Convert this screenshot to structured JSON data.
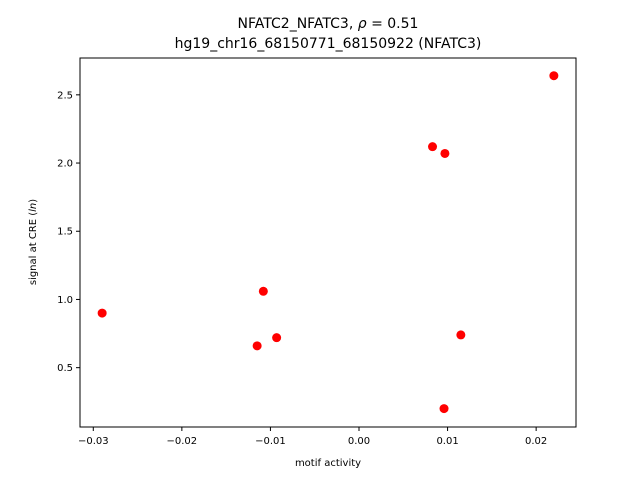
{
  "chart_data": {
    "type": "scatter",
    "title": "NFATC2_NFATC3, ρ = 0.51",
    "title_prefix": "NFATC2_NFATC3, ",
    "title_rho": "ρ",
    "title_suffix": " = 0.51",
    "subtitle": "hg19_chr16_68150771_68150922 (NFATC3)",
    "xlabel": "motif activity",
    "ylabel_prefix": "signal at CRE (",
    "ylabel_ln": "ln",
    "ylabel_suffix": ")",
    "xlim": [
      -0.0315,
      0.0245
    ],
    "ylim": [
      0.065,
      2.77
    ],
    "xticks": [
      -0.03,
      -0.02,
      -0.01,
      0.0,
      0.01,
      0.02
    ],
    "xtick_labels": [
      "−0.03",
      "−0.02",
      "−0.01",
      "0.00",
      "0.01",
      "0.02"
    ],
    "yticks": [
      0.5,
      1.0,
      1.5,
      2.0,
      2.5
    ],
    "ytick_labels": [
      "0.5",
      "1.0",
      "1.5",
      "2.0",
      "2.5"
    ],
    "grid": false,
    "marker_color": "#ff0000",
    "series": [
      {
        "points": [
          {
            "x": -0.029,
            "y": 0.9
          },
          {
            "x": -0.0108,
            "y": 1.06
          },
          {
            "x": -0.0115,
            "y": 0.66
          },
          {
            "x": -0.0093,
            "y": 0.72
          },
          {
            "x": 0.0083,
            "y": 2.12
          },
          {
            "x": 0.0097,
            "y": 2.07
          },
          {
            "x": 0.0115,
            "y": 0.74
          },
          {
            "x": 0.0096,
            "y": 0.2
          },
          {
            "x": 0.022,
            "y": 2.64
          }
        ]
      }
    ]
  }
}
